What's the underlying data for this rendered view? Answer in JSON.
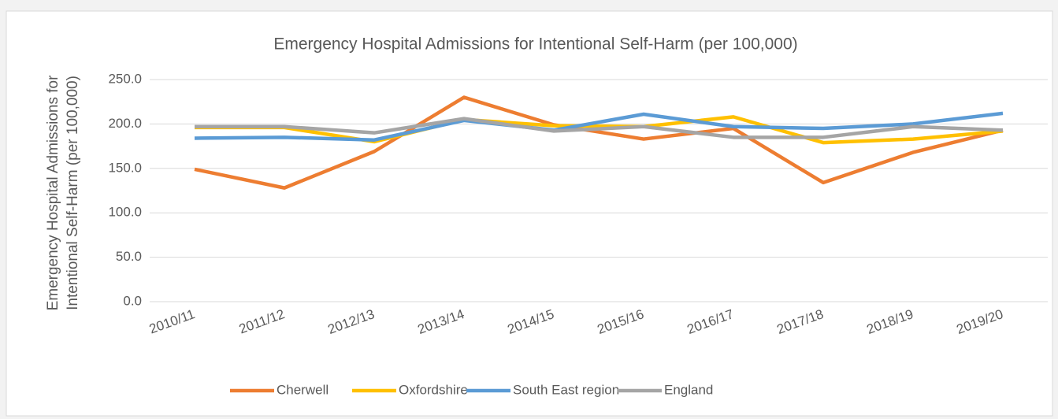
{
  "chart_data": {
    "type": "line",
    "title": "Emergency Hospital Admissions for Intentional Self-Harm (per 100,000)",
    "y_label": [
      "Emergency Hospital Admissions for",
      "Intentional Self-Harm (per 100,000)"
    ],
    "categories": [
      "2010/11",
      "2011/12",
      "2012/13",
      "2013/14",
      "2014/15",
      "2015/16",
      "2016/17",
      "2017/18",
      "2018/19",
      "2019/20"
    ],
    "series": [
      {
        "name": "Cherwell",
        "color": "#ed7d31",
        "values": [
          149,
          128,
          169,
          230,
          199,
          183,
          195,
          134,
          168,
          193
        ]
      },
      {
        "name": "Oxfordshire",
        "color": "#ffc000",
        "values": [
          196,
          196,
          180,
          205,
          198,
          197,
          208,
          179,
          183,
          192
        ]
      },
      {
        "name": "South East region",
        "color": "#5b9bd5",
        "values": [
          184,
          185,
          182,
          204,
          193,
          211,
          197,
          195,
          200,
          212
        ]
      },
      {
        "name": "England",
        "color": "#a5a5a5",
        "values": [
          197,
          197,
          190,
          206,
          192,
          197,
          185,
          185,
          197,
          193
        ]
      }
    ],
    "ylim": [
      0,
      250
    ],
    "yticks": [
      {
        "value": 0,
        "label": "0.0"
      },
      {
        "value": 50,
        "label": "50.0"
      },
      {
        "value": 100,
        "label": "100.0"
      },
      {
        "value": 150,
        "label": "150.0"
      },
      {
        "value": 200,
        "label": "200.0"
      },
      {
        "value": 250,
        "label": "250.0"
      }
    ],
    "grid": true,
    "legend": "bottom"
  }
}
